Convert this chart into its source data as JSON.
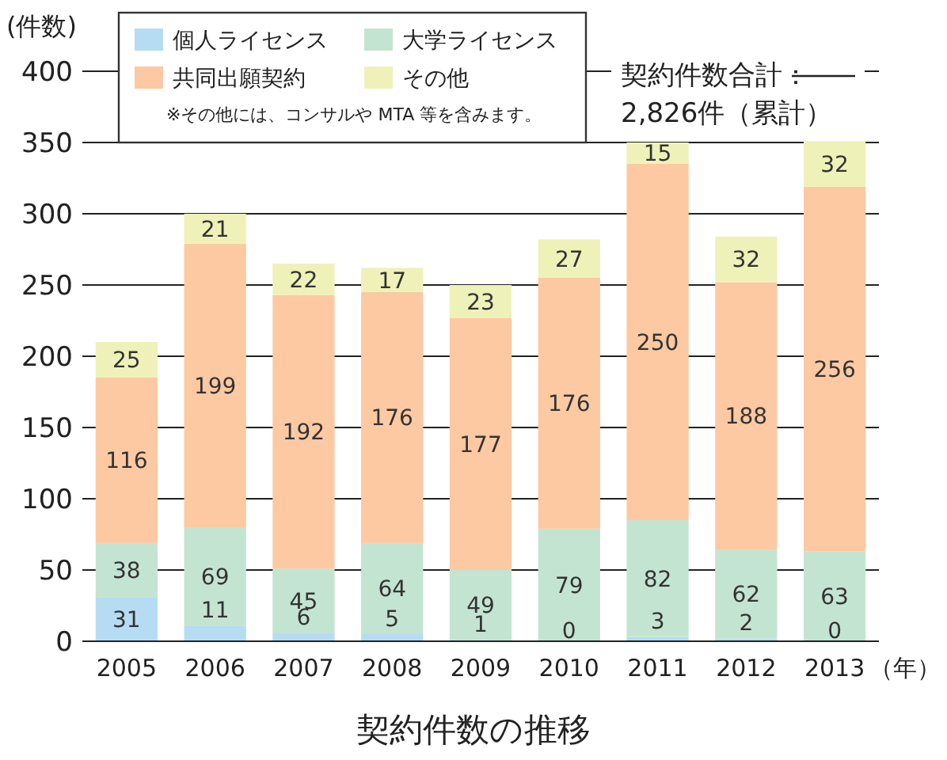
{
  "chart_data": {
    "type": "bar",
    "stacked": true,
    "title": "契約件数の推移",
    "ylabel": "(件数)",
    "xlabel": "（年）",
    "categories": [
      "2005",
      "2006",
      "2007",
      "2008",
      "2009",
      "2010",
      "2011",
      "2012",
      "2013"
    ],
    "series": [
      {
        "name": "個人ライセンス",
        "color": "#b5dcf3",
        "values": [
          31,
          11,
          6,
          5,
          1,
          0,
          3,
          2,
          0
        ],
        "value_labels": [
          "31",
          "11",
          "6",
          "5",
          "1",
          null,
          "3",
          "2",
          null
        ]
      },
      {
        "name": "大学ライセンス",
        "color": "#c4e4d2",
        "values": [
          38,
          69,
          45,
          64,
          49,
          79,
          82,
          62,
          63
        ]
      },
      {
        "name": "共同出願契約",
        "color": "#fcc9a2",
        "values": [
          116,
          199,
          192,
          176,
          177,
          176,
          250,
          188,
          256
        ]
      },
      {
        "name": "その他",
        "color": "#eef2b8",
        "values": [
          25,
          21,
          22,
          17,
          23,
          27,
          15,
          32,
          32
        ]
      }
    ],
    "ylim": [
      0,
      400
    ],
    "yticks": [
      0,
      50,
      100,
      150,
      200,
      250,
      300,
      350,
      400
    ],
    "grid": "y",
    "legend": "top left",
    "data_labels": true,
    "annotations": [
      "※その他には、コンサルや MTA 等を含みます。",
      "契約件数合計：2,826件（累計）",
      {
        "text": "0",
        "x": "2010",
        "y": 0
      },
      {
        "text": "0",
        "x": "2013",
        "y": 0
      }
    ]
  }
}
